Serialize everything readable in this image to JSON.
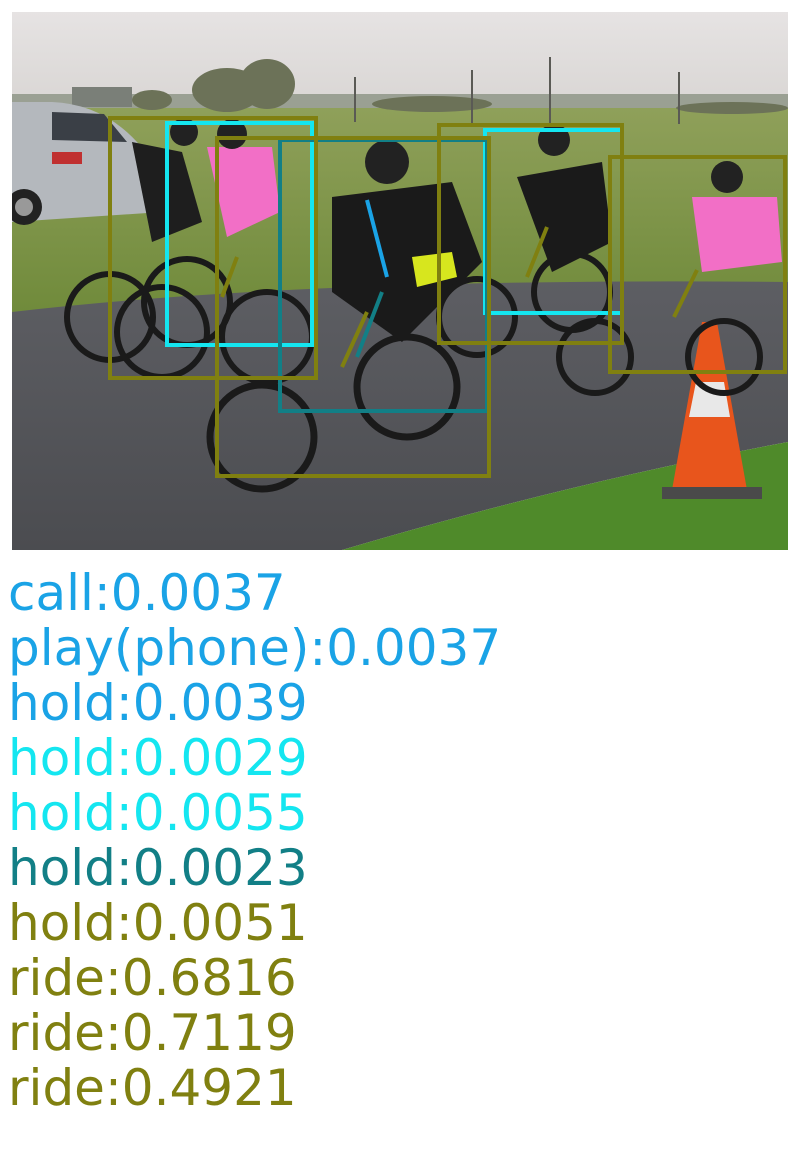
{
  "colors": {
    "blue": "#1aa3e6",
    "cyan": "#14e6f0",
    "teal": "#127f86",
    "olive": "#808010"
  },
  "labels": [
    {
      "text": "call:0.0037",
      "color": "blue"
    },
    {
      "text": "play(phone):0.0037",
      "color": "blue"
    },
    {
      "text": "hold:0.0039",
      "color": "blue"
    },
    {
      "text": "hold:0.0029",
      "color": "cyan"
    },
    {
      "text": "hold:0.0055",
      "color": "cyan"
    },
    {
      "text": "hold:0.0023",
      "color": "teal"
    },
    {
      "text": "hold:0.0051",
      "color": "olive"
    },
    {
      "text": "ride:0.6816",
      "color": "olive"
    },
    {
      "text": "ride:0.7119",
      "color": "olive"
    },
    {
      "text": "ride:0.4921",
      "color": "olive"
    }
  ]
}
